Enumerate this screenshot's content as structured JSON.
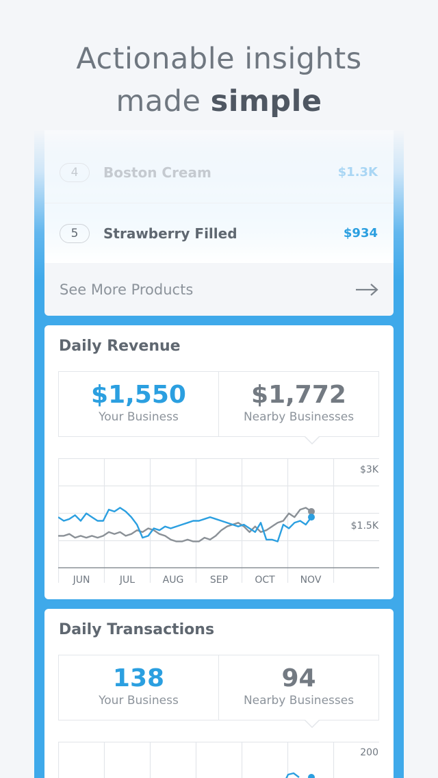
{
  "headline": {
    "line1": "Actionable insights",
    "line2_prefix": "made ",
    "line2_bold": "simple"
  },
  "products": [
    {
      "rank": "4",
      "name": "Boston Cream",
      "value": "$1.3K"
    },
    {
      "rank": "5",
      "name": "Strawberry Filled",
      "value": "$934"
    }
  ],
  "see_more": {
    "label": "See More Products",
    "icon": "arrow-right-icon"
  },
  "revenue": {
    "title": "Daily Revenue",
    "mine": {
      "value": "$1,550",
      "caption": "Your Business"
    },
    "nearby": {
      "value": "$1,772",
      "caption": "Nearby Businesses"
    },
    "chart_data": {
      "type": "line",
      "x_labels": [
        "JUN",
        "JUL",
        "AUG",
        "SEP",
        "OCT",
        "NOV"
      ],
      "y_ticks": [
        "$3K",
        "$1.5K"
      ],
      "ylim": [
        0,
        3500
      ],
      "grid": true,
      "series": [
        {
          "color": "#2b9fe0",
          "values": [
            1.7,
            1.6,
            1.65,
            1.75,
            1.6,
            1.8,
            1.7,
            1.6,
            1.6,
            1.9,
            1.85,
            1.95,
            1.85,
            1.7,
            1.5,
            1.15,
            1.2,
            1.4,
            1.35,
            1.45,
            1.4,
            1.45,
            1.5,
            1.55,
            1.6,
            1.6,
            1.65,
            1.7,
            1.65,
            1.6,
            1.55,
            1.5,
            1.45,
            1.5,
            1.4,
            1.3,
            1.55,
            1.1,
            1.1,
            1.05,
            1.5,
            1.4,
            1.55,
            1.6,
            1.5,
            1.7
          ]
        },
        {
          "color": "#8a9096",
          "values": [
            1.2,
            1.2,
            1.25,
            1.15,
            1.2,
            1.15,
            1.2,
            1.15,
            1.2,
            1.3,
            1.25,
            1.3,
            1.2,
            1.25,
            1.35,
            1.3,
            1.4,
            1.35,
            1.25,
            1.2,
            1.1,
            1.05,
            1.05,
            1.1,
            1.05,
            1.05,
            1.15,
            1.1,
            1.2,
            1.35,
            1.45,
            1.5,
            1.55,
            1.45,
            1.3,
            1.45,
            1.3,
            1.35,
            1.45,
            1.55,
            1.6,
            1.8,
            1.7,
            1.9,
            1.95,
            1.85
          ]
        }
      ]
    }
  },
  "transactions": {
    "title": "Daily Transactions",
    "mine": {
      "value": "138",
      "caption": "Your Business"
    },
    "nearby": {
      "value": "94",
      "caption": "Nearby Businesses"
    },
    "chart_data": {
      "type": "line",
      "y_ticks": [
        "200"
      ]
    }
  }
}
